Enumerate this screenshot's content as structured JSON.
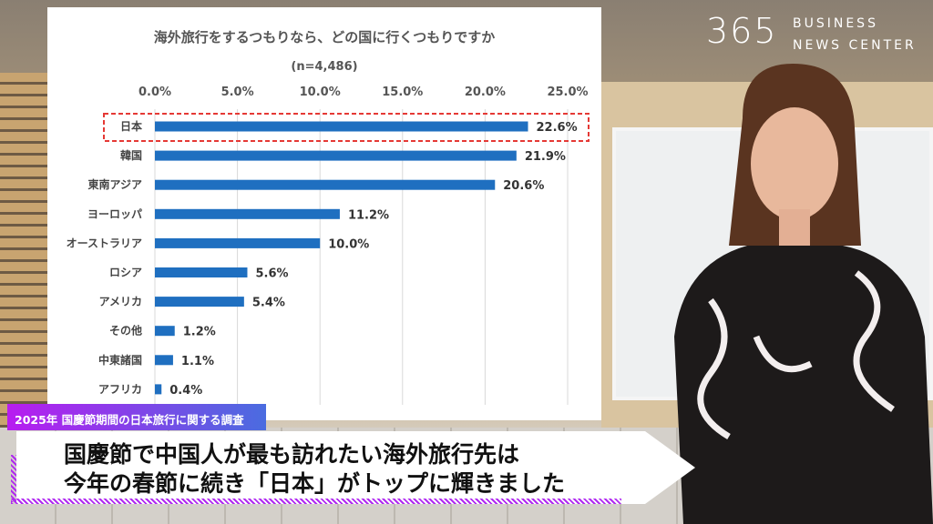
{
  "chart_data": {
    "type": "bar",
    "orientation": "horizontal",
    "title": "海外旅行をするつもりなら、どの国に行くつもりですか",
    "subtitle": "(n=4,486)",
    "categories": [
      "日本",
      "韓国",
      "東南アジア",
      "ヨーロッパ",
      "オーストラリア",
      "ロシア",
      "アメリカ",
      "その他",
      "中東諸国",
      "アフリカ"
    ],
    "values": [
      22.6,
      21.9,
      20.6,
      11.2,
      10.0,
      5.6,
      5.4,
      1.2,
      1.1,
      0.4
    ],
    "data_labels": [
      "22.6%",
      "21.9%",
      "20.6%",
      "11.2%",
      "10.0%",
      "5.6%",
      "5.4%",
      "1.2%",
      "1.1%",
      "0.4%"
    ],
    "xlim": [
      0,
      25
    ],
    "ticks": [
      "0.0%",
      "5.0%",
      "10.0%",
      "15.0%",
      "20.0%",
      "25.0%"
    ],
    "axis_position": "top",
    "grid": true,
    "highlight": "日本",
    "bar_color": "#1f6fc0",
    "highlight_color": "#e53935"
  },
  "logo": {
    "number": "365",
    "line1": "BUSINESS",
    "line2": "NEWS CENTER"
  },
  "caption": {
    "tag": "2025年 国慶節期間の日本旅行に関する調査",
    "line1": "国慶節で中国人が最も訪れたい海外旅行先は",
    "line2": "今年の春節に続き「日本」がトップに輝きました"
  }
}
